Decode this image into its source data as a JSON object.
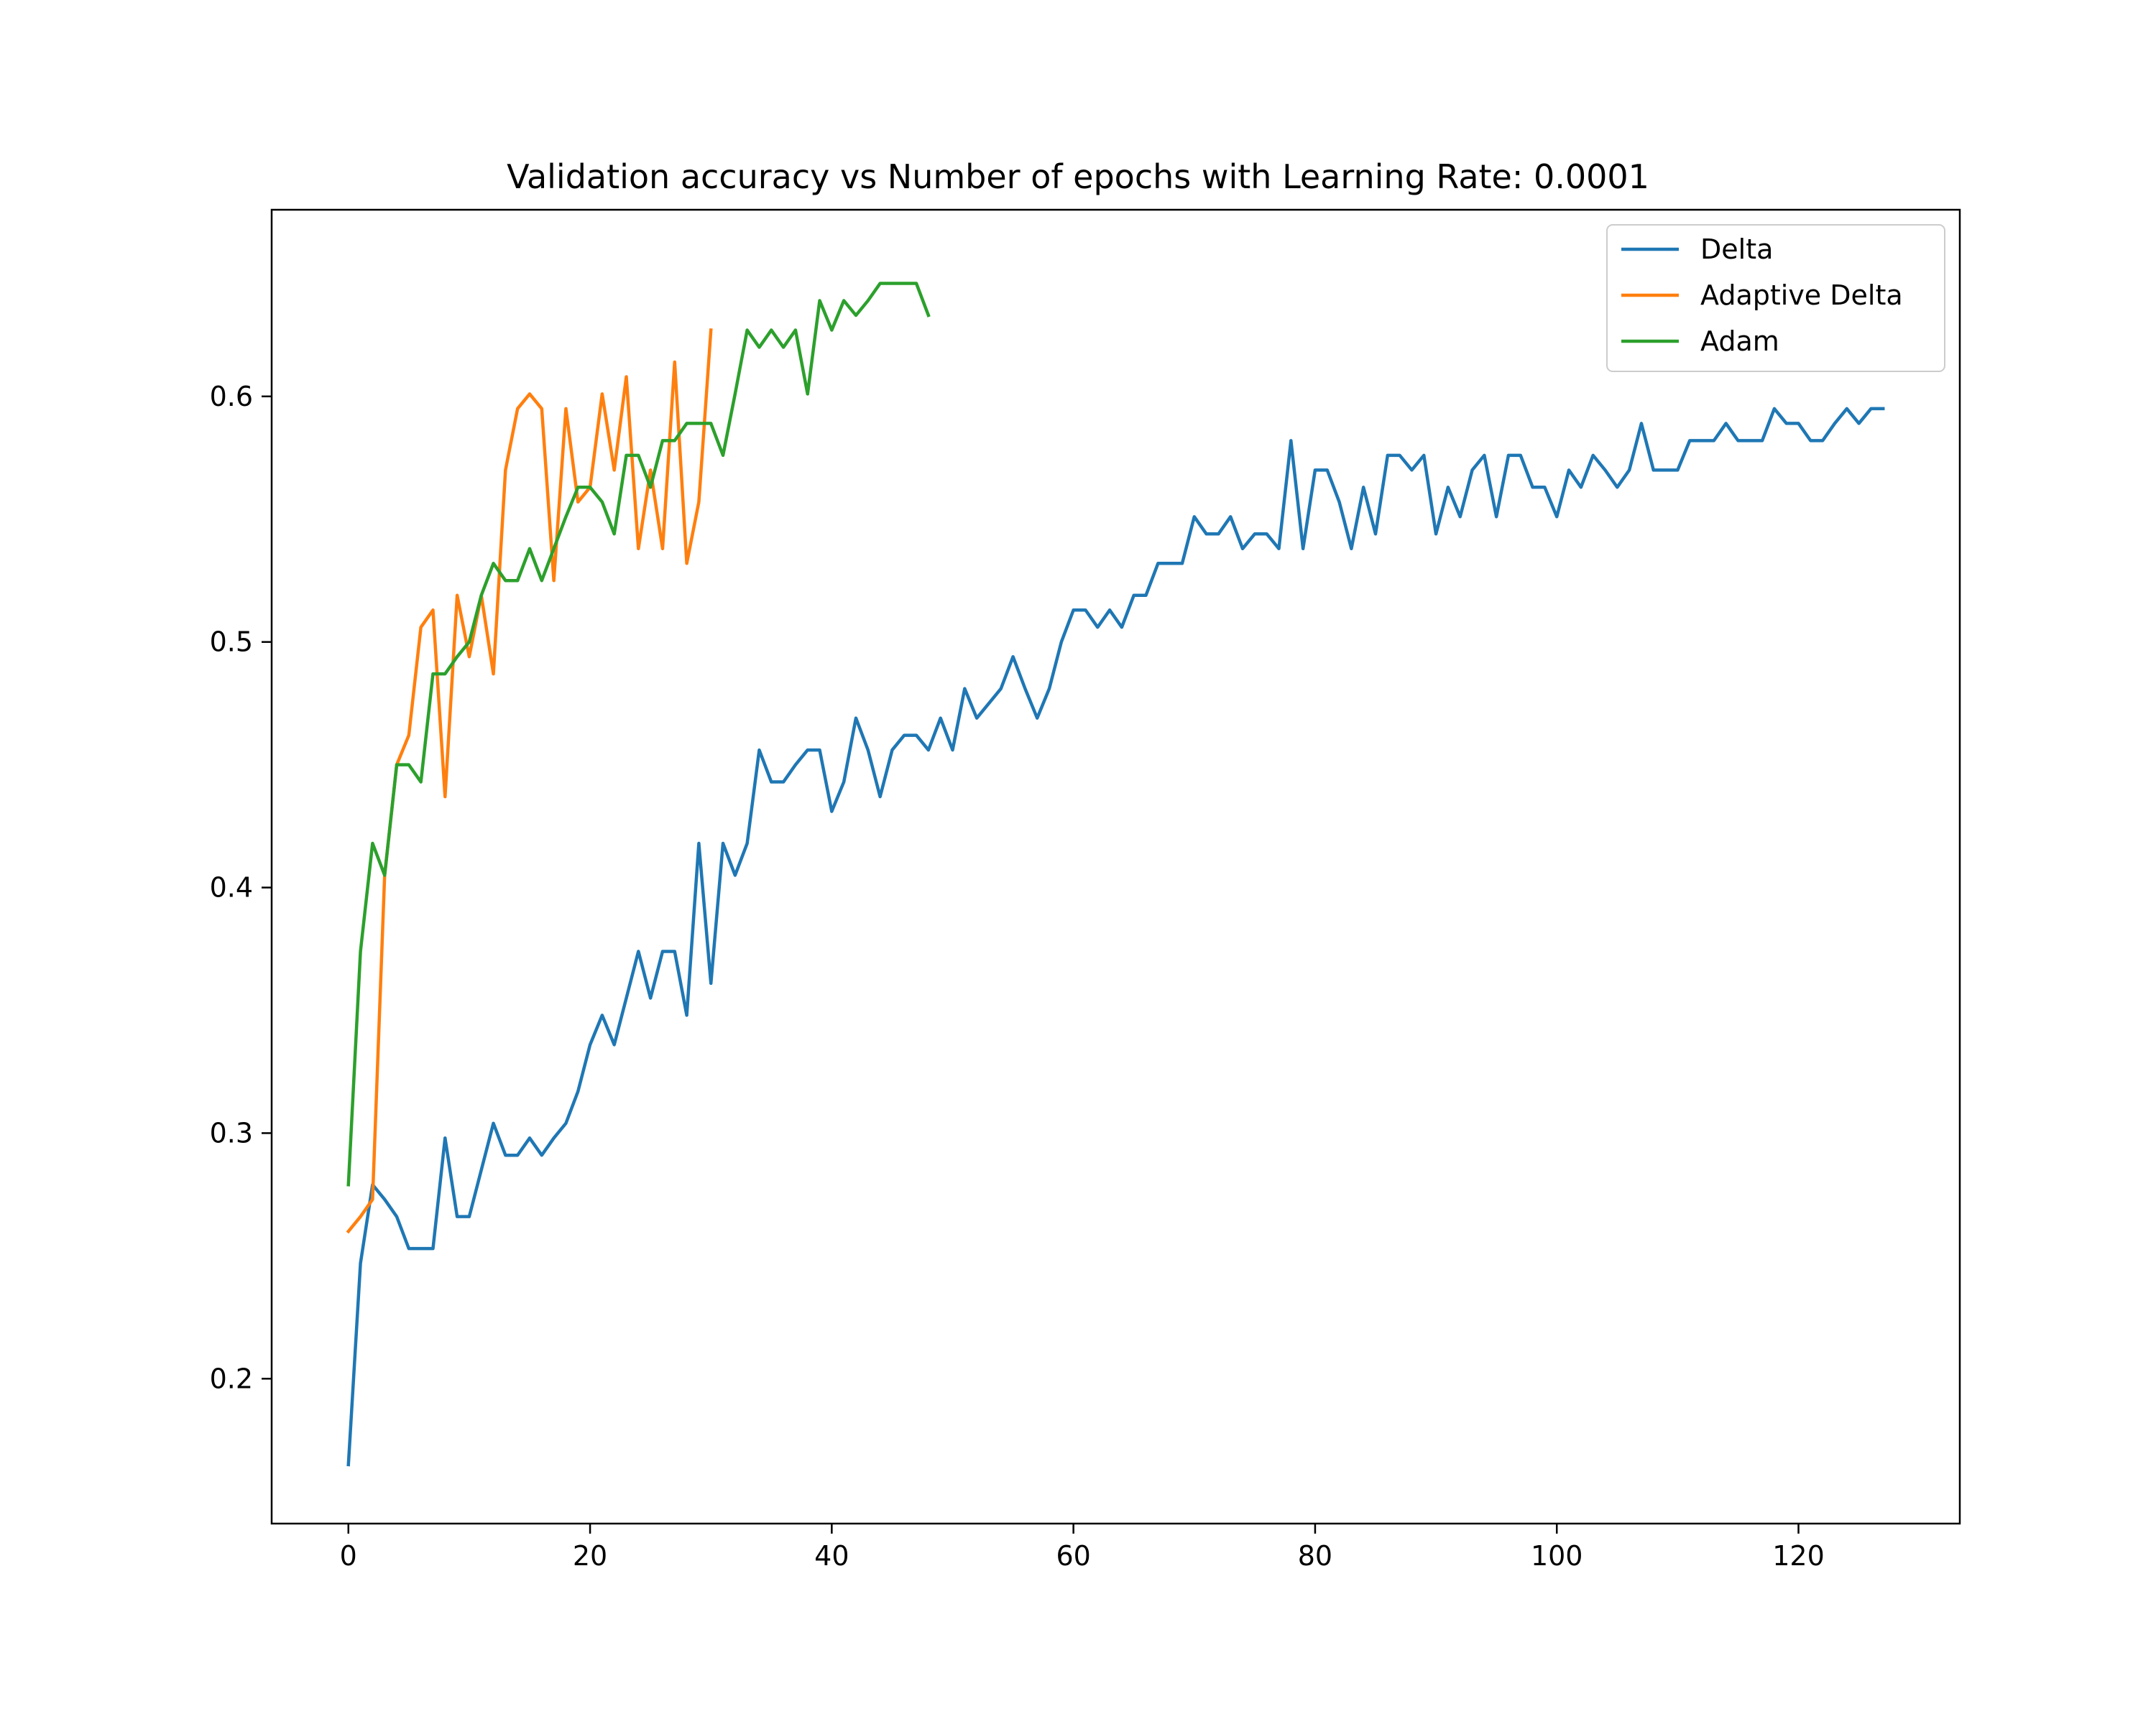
{
  "chart_data": {
    "type": "line",
    "title": "Validation accuracy vs Number of epochs with Learning Rate: 0.0001",
    "xlabel": "",
    "ylabel": "",
    "xlim": [
      -6.35,
      133.35
    ],
    "ylim": [
      0.141,
      0.676
    ],
    "xticks": [
      0,
      20,
      40,
      60,
      80,
      100,
      120
    ],
    "yticks": [
      0.2,
      0.3,
      0.4,
      0.5,
      0.6
    ],
    "grid": false,
    "legend": {
      "position": "top-right"
    },
    "series": [
      {
        "name": "Delta",
        "color": "#1f77b4",
        "values": [
          0.165,
          0.247,
          0.279,
          0.273,
          0.266,
          0.253,
          0.253,
          0.253,
          0.298,
          0.266,
          0.266,
          0.285,
          0.304,
          0.291,
          0.291,
          0.298,
          0.291,
          0.298,
          0.304,
          0.317,
          0.336,
          0.348,
          0.336,
          0.355,
          0.374,
          0.355,
          0.374,
          0.374,
          0.348,
          0.418,
          0.361,
          0.418,
          0.405,
          0.418,
          0.456,
          0.443,
          0.443,
          0.45,
          0.456,
          0.456,
          0.431,
          0.443,
          0.469,
          0.456,
          0.437,
          0.456,
          0.462,
          0.462,
          0.456,
          0.469,
          0.456,
          0.481,
          0.469,
          0.475,
          0.481,
          0.494,
          0.481,
          0.469,
          0.481,
          0.5,
          0.513,
          0.513,
          0.506,
          0.513,
          0.506,
          0.519,
          0.519,
          0.532,
          0.532,
          0.532,
          0.551,
          0.544,
          0.544,
          0.551,
          0.538,
          0.544,
          0.544,
          0.538,
          0.582,
          0.538,
          0.57,
          0.57,
          0.557,
          0.538,
          0.563,
          0.544,
          0.576,
          0.576,
          0.57,
          0.576,
          0.544,
          0.563,
          0.551,
          0.57,
          0.576,
          0.551,
          0.576,
          0.576,
          0.563,
          0.563,
          0.551,
          0.57,
          0.563,
          0.576,
          0.57,
          0.563,
          0.57,
          0.589,
          0.57,
          0.57,
          0.57,
          0.582,
          0.582,
          0.582,
          0.589,
          0.582,
          0.582,
          0.582,
          0.595,
          0.589,
          0.589,
          0.582,
          0.582,
          0.589,
          0.595,
          0.589,
          0.595,
          0.595
        ]
      },
      {
        "name": "Adaptive Delta",
        "color": "#ff7f0e",
        "values": [
          0.26,
          0.266,
          0.273,
          0.405,
          0.45,
          0.462,
          0.506,
          0.513,
          0.437,
          0.519,
          0.494,
          0.519,
          0.487,
          0.57,
          0.595,
          0.601,
          0.595,
          0.525,
          0.595,
          0.557,
          0.563,
          0.601,
          0.57,
          0.608,
          0.538,
          0.57,
          0.538,
          0.614,
          0.532,
          0.557,
          0.627
        ]
      },
      {
        "name": "Adam",
        "color": "#2ca02c",
        "values": [
          0.279,
          0.374,
          0.418,
          0.405,
          0.45,
          0.45,
          0.443,
          0.487,
          0.487,
          0.494,
          0.5,
          0.519,
          0.532,
          0.525,
          0.525,
          0.538,
          0.525,
          0.538,
          0.551,
          0.563,
          0.563,
          0.557,
          0.544,
          0.576,
          0.576,
          0.563,
          0.582,
          0.582,
          0.589,
          0.589,
          0.589,
          0.576,
          0.601,
          0.627,
          0.62,
          0.627,
          0.62,
          0.627,
          0.601,
          0.639,
          0.627,
          0.639,
          0.633,
          0.639,
          0.646,
          0.646,
          0.646,
          0.646,
          0.633
        ]
      }
    ]
  }
}
